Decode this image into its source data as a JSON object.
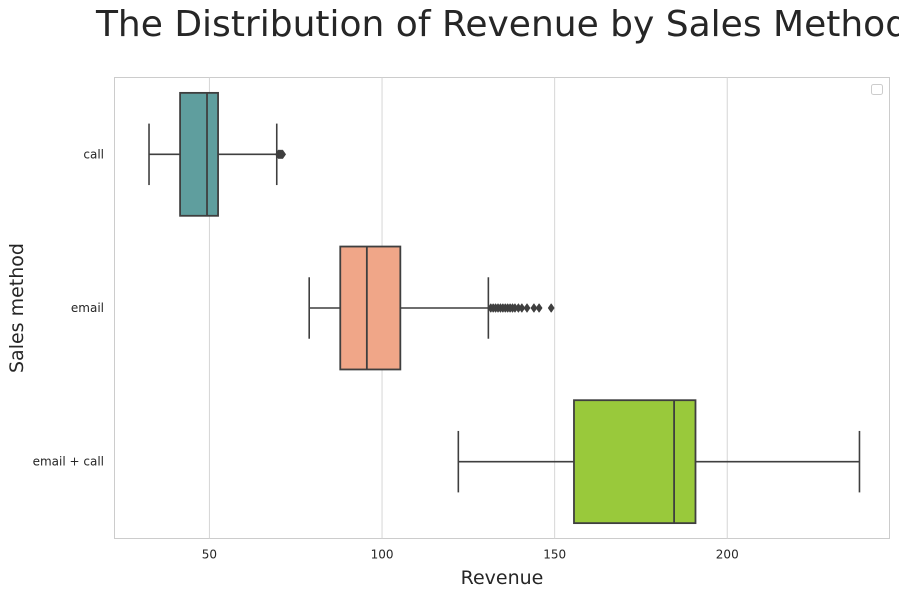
{
  "chart_data": {
    "type": "boxplot",
    "orientation": "horizontal",
    "title": "The Distribution of Revenue by Sales Method",
    "xlabel": "Revenue",
    "ylabel": "Sales method",
    "xlim": [
      22.5,
      247
    ],
    "xticks": [
      50,
      100,
      150,
      200
    ],
    "grid": "vertical",
    "legend": "top-right (empty)",
    "categories": [
      "call",
      "email",
      "email + call"
    ],
    "series": [
      {
        "category": "call",
        "color": "#5f9e9e",
        "whisker_low": 32.5,
        "q1": 41.5,
        "median": 49.3,
        "q3": 52.5,
        "whisker_high": 69.5,
        "outliers": [
          70.0,
          70.3,
          70.6,
          70.9,
          71.2
        ]
      },
      {
        "category": "email",
        "color": "#f0a688",
        "whisker_low": 78.9,
        "q1": 87.9,
        "median": 95.6,
        "q3": 105.3,
        "whisker_high": 130.8,
        "outliers": [
          131.5,
          132.2,
          132.9,
          133.6,
          134.3,
          135.0,
          135.7,
          136.4,
          137.1,
          137.8,
          138.5,
          139.5,
          140.5,
          142.0,
          144.0,
          145.5,
          149.0
        ]
      },
      {
        "category": "email + call",
        "color": "#99c93b",
        "whisker_low": 122.1,
        "q1": 155.6,
        "median": 184.6,
        "q3": 190.8,
        "whisker_high": 238.3,
        "outliers": []
      }
    ]
  }
}
